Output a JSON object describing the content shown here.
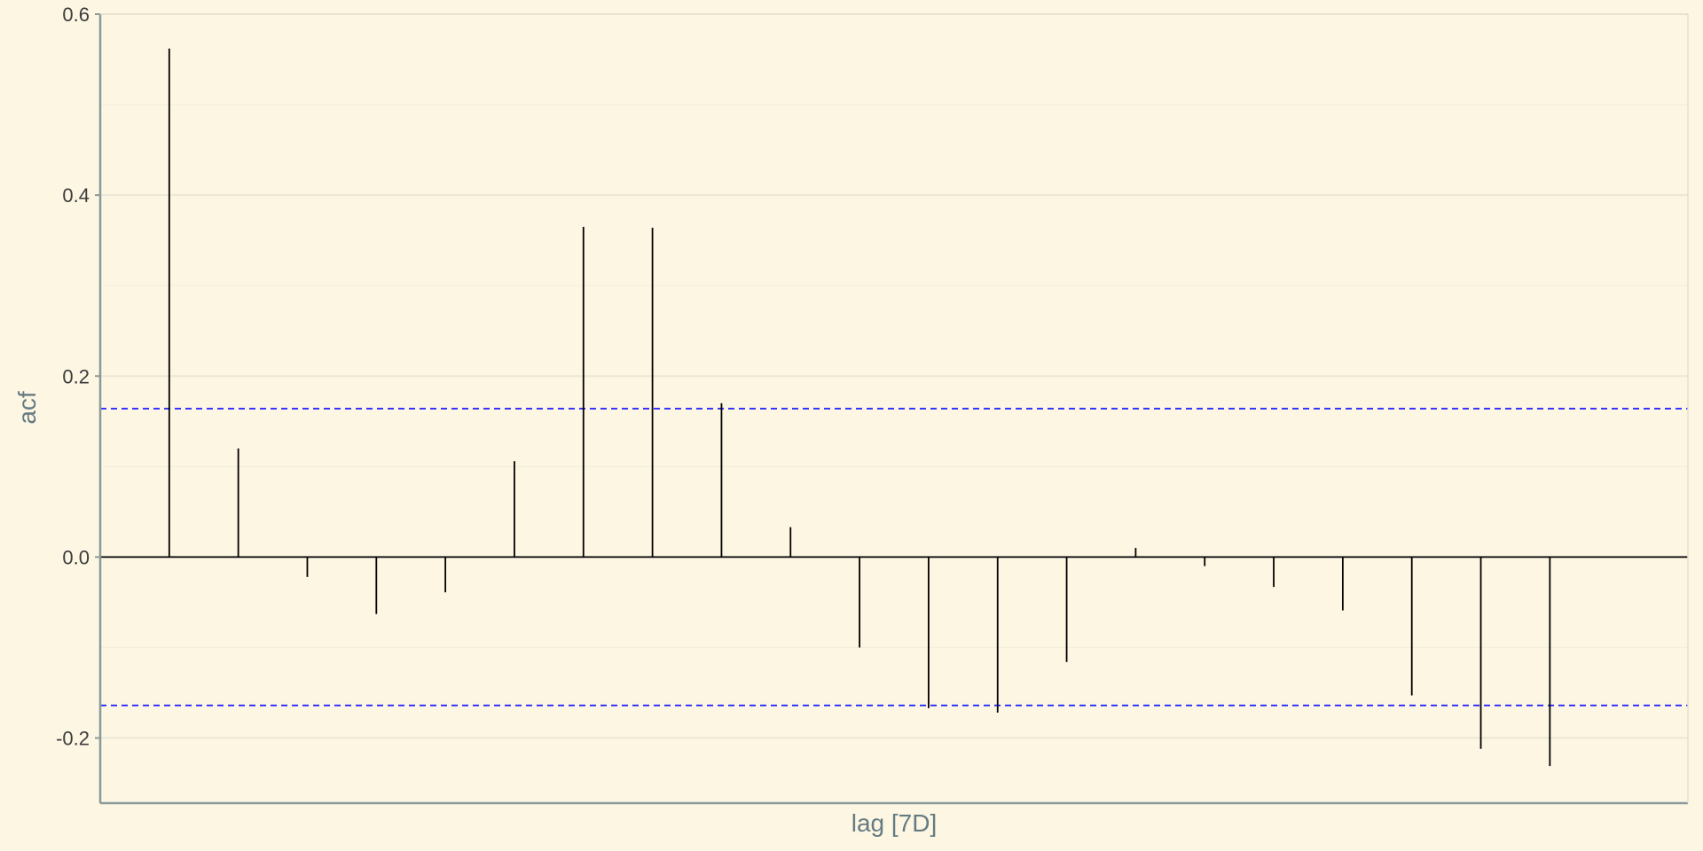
{
  "chart_data": {
    "type": "bar",
    "subtype": "acf-lollipop",
    "title": "",
    "xlabel": "lag [7D]",
    "ylabel": "acf",
    "ylim": [
      -0.272,
      0.6
    ],
    "yticks": [
      -0.2,
      0.0,
      0.2,
      0.4,
      0.6
    ],
    "ytick_labels": [
      "-0.2",
      "0.0",
      "0.2",
      "0.4",
      "0.6"
    ],
    "x": [
      1,
      2,
      3,
      4,
      5,
      6,
      7,
      8,
      9,
      10,
      11,
      12,
      13,
      14,
      15,
      16,
      17,
      18,
      19,
      20,
      21,
      22
    ],
    "values": [
      0.562,
      0.12,
      -0.022,
      -0.063,
      -0.039,
      0.106,
      0.365,
      0.364,
      0.17,
      0.033,
      -0.1,
      -0.167,
      -0.172,
      -0.116,
      0.01,
      -0.01,
      -0.033,
      -0.059,
      -0.153,
      -0.212,
      -0.231,
      null
    ],
    "confidence_bound": 0.164,
    "grid": true,
    "colors": {
      "background": "#fdf6e3",
      "bar": "#000000",
      "confidence_line": "#1a1aff",
      "axis": "#8a9a9a",
      "gridline": "#ece6d5",
      "axis_title": "#657b83",
      "tick_label": "#3b3b3b"
    }
  }
}
